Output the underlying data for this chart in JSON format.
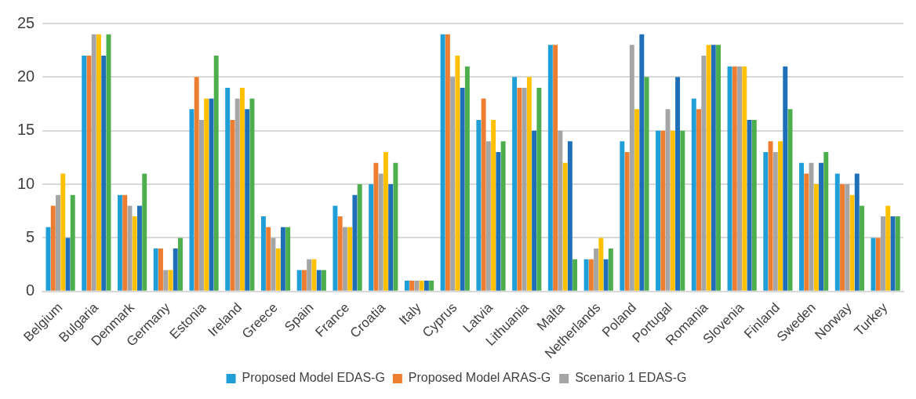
{
  "chart_data": {
    "type": "bar",
    "categories": [
      "Belgium",
      "Bulgaria",
      "Denmark",
      "Germany",
      "Estonia",
      "Ireland",
      "Greece",
      "Spain",
      "France",
      "Croatia",
      "Italy",
      "Cyprus",
      "Latvia",
      "Lithuania",
      "Malta",
      "Netherlands",
      "Poland",
      "Portugal",
      "Romania",
      "Slovenia",
      "Finland",
      "Sweden",
      "Norway",
      "Turkey"
    ],
    "series": [
      {
        "name": "Proposed Model EDAS-G",
        "color": "#1f9ed8",
        "values": [
          6,
          22,
          9,
          4,
          17,
          19,
          7,
          2,
          8,
          10,
          1,
          24,
          16,
          20,
          23,
          3,
          14,
          15,
          18,
          21,
          13,
          12,
          11,
          5
        ]
      },
      {
        "name": "Proposed Model ARAS-G",
        "color": "#ed7d31",
        "values": [
          8,
          22,
          9,
          4,
          20,
          16,
          6,
          2,
          7,
          12,
          1,
          24,
          18,
          19,
          23,
          3,
          13,
          15,
          17,
          21,
          14,
          11,
          10,
          5
        ]
      },
      {
        "name": "Scenario 1 EDAS-G",
        "color": "#a5a5a5",
        "values": [
          9,
          24,
          8,
          2,
          16,
          18,
          5,
          3,
          6,
          11,
          1,
          20,
          14,
          19,
          15,
          4,
          23,
          17,
          22,
          21,
          13,
          12,
          10,
          7
        ]
      },
      {
        "color": "#ffc000",
        "values": [
          11,
          24,
          7,
          2,
          18,
          19,
          4,
          3,
          6,
          13,
          1,
          22,
          16,
          20,
          12,
          5,
          17,
          15,
          23,
          21,
          14,
          10,
          9,
          8
        ]
      },
      {
        "color": "#1f6fb8",
        "values": [
          5,
          22,
          8,
          4,
          18,
          17,
          6,
          2,
          9,
          10,
          1,
          19,
          13,
          15,
          14,
          3,
          24,
          20,
          23,
          16,
          21,
          12,
          11,
          7
        ]
      },
      {
        "color": "#4cae4c",
        "values": [
          9,
          24,
          11,
          5,
          22,
          18,
          6,
          2,
          10,
          12,
          1,
          21,
          14,
          19,
          3,
          4,
          20,
          15,
          23,
          16,
          17,
          13,
          8,
          7
        ]
      }
    ],
    "ylim": [
      0,
      25
    ],
    "yticks": [
      0,
      5,
      10,
      15,
      20,
      25
    ],
    "grid": "y",
    "legend": "bottom"
  }
}
